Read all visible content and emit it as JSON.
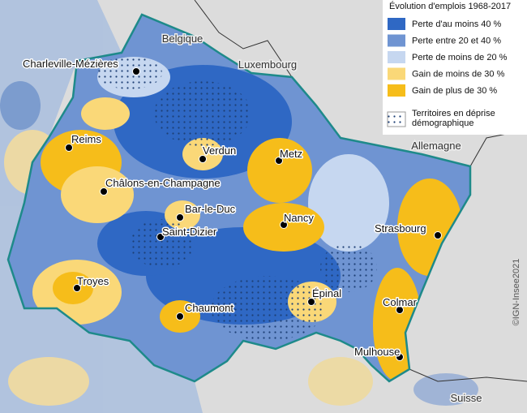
{
  "legend": {
    "title": "Évolution d'emplois 1968-2017",
    "items": [
      {
        "label": "Perte d'au moins 40 %",
        "color": "#2f68c4"
      },
      {
        "label": "Perte entre 20 et 40 %",
        "color": "#6f94d2"
      },
      {
        "label": "Perte de moins de 20 %",
        "color": "#c6d7f0"
      },
      {
        "label": "Gain de moins de 30 %",
        "color": "#fad878"
      },
      {
        "label": "Gain de plus de 30 %",
        "color": "#f6bd1a"
      }
    ],
    "pattern_label": "Territoires en déprise démographique"
  },
  "countries": [
    "Belgique",
    "Luxembourg",
    "Allemagne",
    "Suisse"
  ],
  "cities": [
    "Charleville-Mézières",
    "Reims",
    "Verdun",
    "Metz",
    "Châlons-en-Champagne",
    "Bar-le-Duc",
    "Saint-Dizier",
    "Nancy",
    "Strasbourg",
    "Troyes",
    "Épinal",
    "Chaumont",
    "Colmar",
    "Mulhouse"
  ],
  "credit": "©IGN-Insee2021"
}
